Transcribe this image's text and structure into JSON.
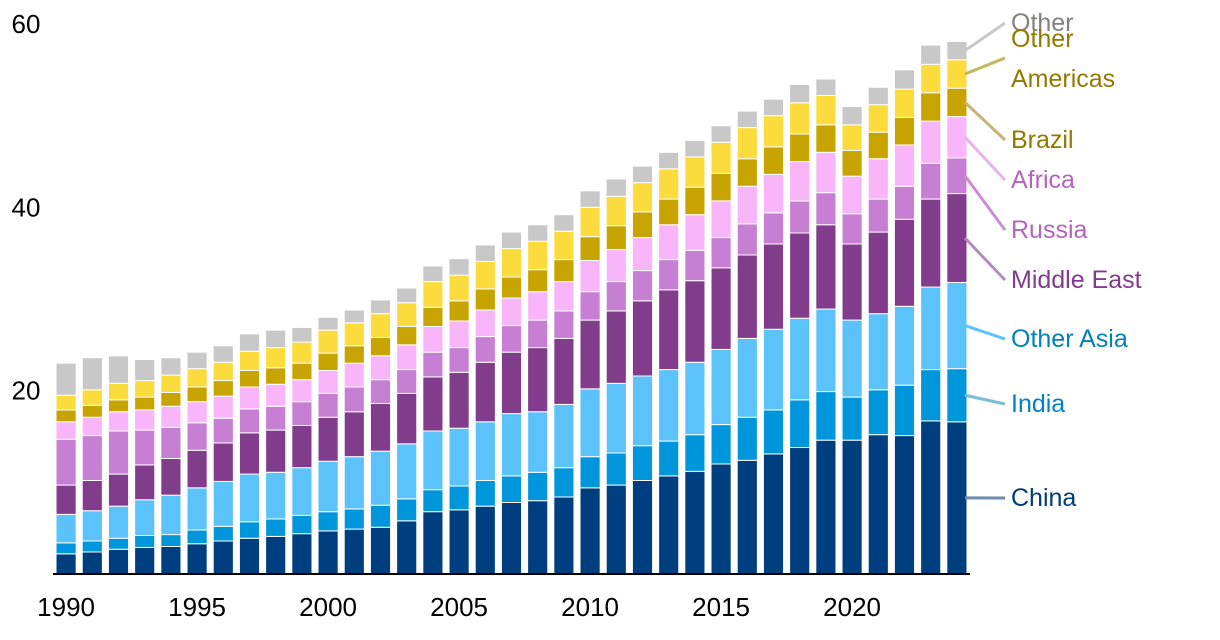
{
  "chart_data": {
    "type": "bar",
    "stacked": true,
    "title": "",
    "xlabel": "",
    "ylabel": "",
    "ylim": [
      0,
      60
    ],
    "yticks": [
      20,
      40,
      60
    ],
    "ytick_labels": [
      "20",
      "40",
      "60"
    ],
    "xtick_years": [
      1990,
      1995,
      2000,
      2005,
      2010,
      2015,
      2020
    ],
    "xtick_labels": [
      "1990",
      "1995",
      "2000",
      "2005",
      "2010",
      "2015",
      "2020"
    ],
    "grid": false,
    "legend_position": "right",
    "categories": [
      1990,
      1991,
      1992,
      1993,
      1994,
      1995,
      1996,
      1997,
      1998,
      1999,
      2000,
      2001,
      2002,
      2003,
      2004,
      2005,
      2006,
      2007,
      2008,
      2009,
      2010,
      2011,
      2012,
      2013,
      2014,
      2015,
      2016,
      2017,
      2018,
      2019,
      2020,
      2021,
      2022,
      2023,
      2024
    ],
    "series": [
      {
        "name": "China",
        "color": "#003f7f",
        "values": [
          2.2,
          2.4,
          2.7,
          2.9,
          3.0,
          3.3,
          3.6,
          3.9,
          4.1,
          4.4,
          4.7,
          4.9,
          5.1,
          5.8,
          6.8,
          7.0,
          7.4,
          7.8,
          8.0,
          8.4,
          9.4,
          9.7,
          10.2,
          10.7,
          11.2,
          12.0,
          12.4,
          13.1,
          13.8,
          14.6,
          14.6,
          15.2,
          15.1,
          16.7,
          16.6
        ]
      },
      {
        "name": "India",
        "color": "#0096dc",
        "values": [
          1.2,
          1.2,
          1.2,
          1.3,
          1.3,
          1.5,
          1.6,
          1.8,
          1.9,
          2.0,
          2.1,
          2.2,
          2.4,
          2.4,
          2.4,
          2.6,
          2.8,
          2.9,
          3.1,
          3.2,
          3.4,
          3.5,
          3.8,
          3.8,
          4.0,
          4.3,
          4.7,
          4.8,
          5.2,
          5.3,
          4.7,
          4.9,
          5.5,
          5.6,
          5.8
        ]
      },
      {
        "name": "Other Asia",
        "color": "#5bc3fa",
        "values": [
          3.1,
          3.3,
          3.5,
          3.9,
          4.3,
          4.6,
          4.9,
          5.2,
          5.1,
          5.2,
          5.5,
          5.7,
          5.9,
          6.0,
          6.4,
          6.3,
          6.4,
          6.8,
          6.6,
          6.9,
          7.4,
          7.6,
          7.6,
          7.8,
          7.9,
          8.2,
          8.6,
          8.8,
          8.9,
          9.0,
          8.4,
          8.3,
          8.6,
          9.0,
          9.4
        ]
      },
      {
        "name": "Middle East",
        "color": "#823c8c",
        "values": [
          3.2,
          3.3,
          3.5,
          3.8,
          4.0,
          4.1,
          4.2,
          4.5,
          4.6,
          4.6,
          4.8,
          4.9,
          5.2,
          5.5,
          5.9,
          6.1,
          6.5,
          6.7,
          7.0,
          7.2,
          7.5,
          7.9,
          8.2,
          8.7,
          8.9,
          8.9,
          9.1,
          9.3,
          9.3,
          9.2,
          8.3,
          8.9,
          9.5,
          9.6,
          9.7
        ]
      },
      {
        "name": "Russia",
        "color": "#c67fd2",
        "values": [
          5.0,
          4.9,
          4.7,
          3.8,
          3.4,
          3.0,
          2.7,
          2.6,
          2.6,
          2.6,
          2.6,
          2.7,
          2.6,
          2.6,
          2.7,
          2.7,
          2.8,
          2.9,
          3.0,
          3.0,
          3.1,
          3.2,
          3.3,
          3.3,
          3.3,
          3.3,
          3.4,
          3.4,
          3.5,
          3.5,
          3.3,
          3.6,
          3.6,
          3.9,
          3.9
        ]
      },
      {
        "name": "Africa",
        "color": "#f9b5fa",
        "values": [
          1.9,
          2.0,
          2.1,
          2.2,
          2.3,
          2.3,
          2.4,
          2.4,
          2.4,
          2.4,
          2.5,
          2.6,
          2.6,
          2.7,
          2.8,
          2.9,
          2.9,
          3.0,
          3.1,
          3.2,
          3.4,
          3.5,
          3.6,
          3.8,
          3.9,
          4.0,
          4.1,
          4.2,
          4.3,
          4.4,
          4.1,
          4.4,
          4.5,
          4.6,
          4.5
        ]
      },
      {
        "name": "Brazil",
        "color": "#c8a400",
        "values": [
          1.3,
          1.3,
          1.3,
          1.4,
          1.5,
          1.6,
          1.7,
          1.8,
          1.8,
          1.8,
          1.9,
          1.9,
          2.0,
          2.0,
          2.1,
          2.2,
          2.3,
          2.3,
          2.4,
          2.4,
          2.6,
          2.6,
          2.8,
          2.8,
          3.0,
          3.0,
          3.0,
          3.0,
          3.0,
          3.0,
          2.8,
          2.9,
          3.0,
          3.1,
          3.1
        ]
      },
      {
        "name": "Other Americas",
        "color": "#fcdc3c",
        "values": [
          1.6,
          1.7,
          1.8,
          1.8,
          1.9,
          2.0,
          2.0,
          2.1,
          2.2,
          2.3,
          2.5,
          2.5,
          2.6,
          2.6,
          2.8,
          2.8,
          3.0,
          3.1,
          3.1,
          3.1,
          3.2,
          3.2,
          3.2,
          3.3,
          3.3,
          3.4,
          3.4,
          3.4,
          3.4,
          3.2,
          2.8,
          3.0,
          3.1,
          3.1,
          3.1
        ]
      },
      {
        "name": "Other",
        "color": "#c8c8c8",
        "values": [
          3.5,
          3.5,
          3.0,
          2.3,
          1.9,
          1.8,
          1.8,
          1.9,
          1.9,
          1.6,
          1.4,
          1.4,
          1.5,
          1.6,
          1.7,
          1.8,
          1.8,
          1.8,
          1.8,
          1.8,
          1.8,
          1.9,
          1.8,
          1.8,
          1.8,
          1.8,
          1.8,
          1.8,
          2.0,
          1.8,
          2.0,
          1.9,
          2.1,
          2.1,
          2.0
        ]
      }
    ]
  },
  "legend": [
    {
      "label": "Other",
      "series": "Other",
      "text_color": "#808080",
      "line_color": "#c8c8c8"
    },
    {
      "label": "Other",
      "label2": "Americas",
      "series": "Other Americas",
      "text_color": "#917a00",
      "line_color": "#c8b45a"
    },
    {
      "label": "Brazil",
      "series": "Brazil",
      "text_color": "#917a00",
      "line_color": "#c8b478"
    },
    {
      "label": "Africa",
      "series": "Africa",
      "text_color": "#b464be",
      "line_color": "#e6b4eb"
    },
    {
      "label": "Russia",
      "series": "Russia",
      "text_color": "#b464be",
      "line_color": "#c890d2"
    },
    {
      "label": "Middle East",
      "series": "Middle East",
      "text_color": "#823c8c",
      "line_color": "#b48cbe"
    },
    {
      "label": "Other Asia",
      "series": "Other Asia",
      "text_color": "#0082b4",
      "line_color": "#5bc3fa"
    },
    {
      "label": "India",
      "series": "India",
      "text_color": "#0082c8",
      "line_color": "#78bedc"
    },
    {
      "label": "China",
      "series": "China",
      "text_color": "#003c78",
      "line_color": "#6e8caa"
    }
  ]
}
